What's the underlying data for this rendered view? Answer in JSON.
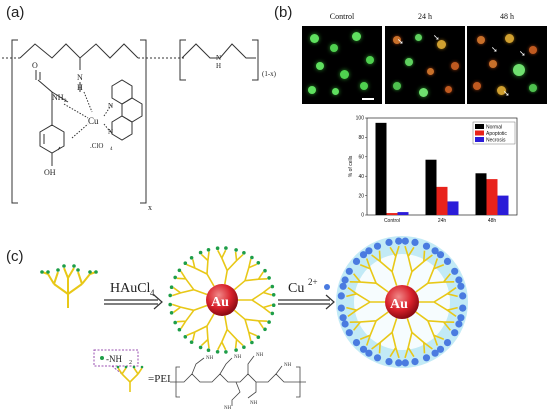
{
  "panels": {
    "a": "(a)",
    "b": "(b)",
    "c": "(c)"
  },
  "molecule": {
    "atoms": {
      "n_top": "N",
      "h_top": "H",
      "cu": "Cu",
      "o": "O",
      "nh2": "NH",
      "nh2_sub": "2",
      "clo4": ".ClO",
      "clo4_sub": "4",
      "oh": "OH",
      "n_ring1": "N",
      "n_ring2": "N",
      "n_right": "N",
      "h_right": "H"
    },
    "subscript_x": "x",
    "subscript_1mx": "(1-x)"
  },
  "microscopy": {
    "panels": [
      {
        "label": "Control"
      },
      {
        "label": "24 h"
      },
      {
        "label": "48 h"
      }
    ]
  },
  "chart_data": {
    "type": "bar",
    "categories": [
      "Control",
      "24h",
      "48h"
    ],
    "series": [
      {
        "name": "Normal",
        "color": "#000000",
        "values": [
          95,
          57,
          43
        ]
      },
      {
        "name": "Apoptotic",
        "color": "#e8231b",
        "values": [
          2,
          29,
          37
        ]
      },
      {
        "name": "Necrosis",
        "color": "#2b1cd8",
        "values": [
          3,
          14,
          20
        ]
      }
    ],
    "ylabel": "% of cells",
    "ylim": [
      0,
      100
    ],
    "yticks": [
      0,
      20,
      40,
      60,
      80,
      100
    ],
    "legend_position": "top-right"
  },
  "scheme": {
    "haucl4": "HAuCl",
    "haucl4_sub": "4",
    "cu_ion": "Cu",
    "cu_ion_sup": "2+",
    "au1": "Au",
    "au2": "Au",
    "nh2_label": "-NH",
    "nh2_sub": "2",
    "pei_label": "=PEI",
    "pei_nh": [
      "NH",
      "NH",
      "NH",
      "NH",
      "NH",
      "NH"
    ]
  },
  "colors": {
    "dendrimer": "#e8c818",
    "dendrimer_tip": "#1e9e48",
    "au_core": "#d8202a",
    "shell": "#8fd8ee",
    "cu_dot": "#4a7be0",
    "nh2_box": "#9a4fb0"
  }
}
